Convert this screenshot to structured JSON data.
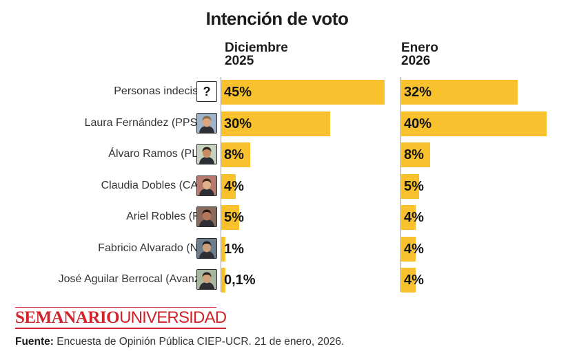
{
  "title": "Intención de voto",
  "columns": {
    "dec": {
      "line1": "Diciembre",
      "line2": "2025"
    },
    "jan": {
      "line1": "Enero",
      "line2": "2026"
    }
  },
  "rows": [
    {
      "label": "Personas indecisas",
      "avatar": "question-mark-icon",
      "avatar_text": "?",
      "dec": "45%",
      "jan": "32%"
    },
    {
      "label": "Laura Fernández (PPSO)",
      "avatar": "candidate-photo",
      "dec": "30%",
      "jan": "40%"
    },
    {
      "label": "Álvaro Ramos (PLN)",
      "avatar": "candidate-photo",
      "dec": "8%",
      "jan": "8%"
    },
    {
      "label": "Claudia Dobles (CAC)",
      "avatar": "candidate-photo",
      "dec": "4%",
      "jan": "5%"
    },
    {
      "label": "Ariel Robles (FA)",
      "avatar": "candidate-photo",
      "dec": "5%",
      "jan": "4%"
    },
    {
      "label": "Fabricio Alvarado (NR)",
      "avatar": "candidate-photo",
      "dec": "1%",
      "jan": "4%"
    },
    {
      "label": "José Aguilar Berrocal (Avanza)",
      "avatar": "candidate-photo",
      "dec": "0,1%",
      "jan": "4%"
    }
  ],
  "brand": {
    "part1": "SEMANARIO",
    "part2": "UNIVERSIDAD"
  },
  "source": {
    "label": "Fuente:",
    "text": " Encuesta de Opinión Pública CIEP-UCR. 21 de enero, 2026."
  },
  "colors": {
    "bar": "#f8c12d",
    "brand": "#d0232a",
    "text": "#1c1c1c"
  },
  "chart_data": {
    "type": "bar",
    "orientation": "horizontal",
    "title": "Intención de voto",
    "categories": [
      "Personas indecisas",
      "Laura Fernández (PPSO)",
      "Álvaro Ramos (PLN)",
      "Claudia Dobles (CAC)",
      "Ariel Robles (FA)",
      "Fabricio Alvarado (NR)",
      "José Aguilar Berrocal (Avanza)"
    ],
    "series": [
      {
        "name": "Diciembre 2025",
        "values": [
          45,
          30,
          8,
          4,
          5,
          1,
          0.1
        ]
      },
      {
        "name": "Enero 2026",
        "values": [
          32,
          40,
          8,
          5,
          4,
          4,
          4
        ]
      }
    ],
    "unit": "%",
    "grid": false
  }
}
